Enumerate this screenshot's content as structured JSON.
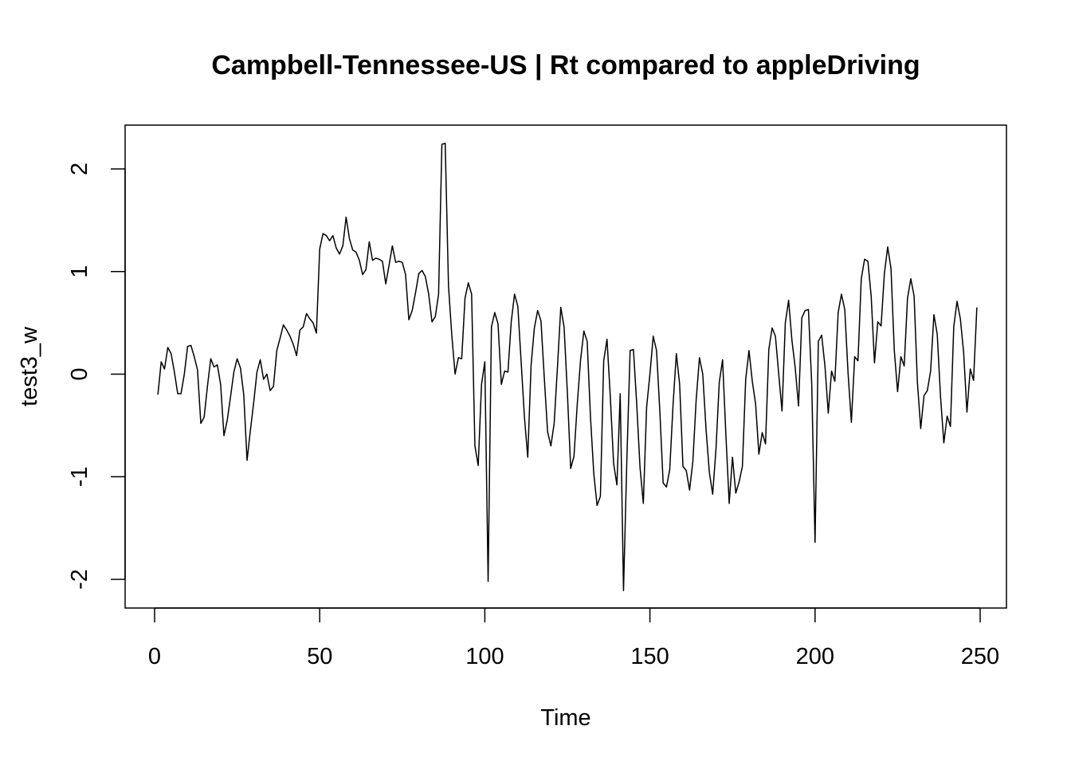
{
  "chart_data": {
    "type": "line",
    "title": "Campbell-Tennessee-US | Rt compared to appleDriving",
    "xlabel": "Time",
    "ylabel": "test3_w",
    "xlim": [
      0,
      250
    ],
    "ylim": [
      -2,
      2
    ],
    "x_ticks": [
      "0",
      "50",
      "100",
      "150",
      "200",
      "250"
    ],
    "y_ticks": [
      "-2",
      "-1",
      "0",
      "1",
      "2"
    ],
    "grid": false,
    "x_start": 1,
    "series": [
      {
        "color": "#000000",
        "values": [
          -0.2,
          0.12,
          0.05,
          0.26,
          0.2,
          0.02,
          -0.19,
          -0.19,
          0.0,
          0.27,
          0.28,
          0.17,
          0.04,
          -0.48,
          -0.42,
          -0.12,
          0.15,
          0.07,
          0.09,
          -0.1,
          -0.6,
          -0.45,
          -0.22,
          0.02,
          0.15,
          0.06,
          -0.2,
          -0.84,
          -0.55,
          -0.28,
          0.02,
          0.14,
          -0.05,
          0.0,
          -0.16,
          -0.12,
          0.23,
          0.35,
          0.48,
          0.43,
          0.37,
          0.29,
          0.18,
          0.43,
          0.46,
          0.59,
          0.54,
          0.5,
          0.4,
          1.22,
          1.37,
          1.35,
          1.3,
          1.35,
          1.23,
          1.17,
          1.25,
          1.53,
          1.32,
          1.21,
          1.19,
          1.11,
          0.97,
          1.02,
          1.29,
          1.11,
          1.13,
          1.12,
          1.1,
          0.88,
          1.06,
          1.25,
          1.09,
          1.1,
          1.09,
          0.97,
          0.53,
          0.62,
          0.79,
          0.98,
          1.01,
          0.95,
          0.78,
          0.51,
          0.56,
          0.78,
          2.24,
          2.25,
          0.86,
          0.38,
          0.0,
          0.16,
          0.15,
          0.74,
          0.89,
          0.78,
          -0.7,
          -0.89,
          -0.1,
          0.12,
          -2.02,
          0.46,
          0.6,
          0.49,
          -0.1,
          0.03,
          0.02,
          0.51,
          0.78,
          0.66,
          0.12,
          -0.42,
          -0.81,
          0.08,
          0.45,
          0.62,
          0.52,
          -0.03,
          -0.56,
          -0.7,
          -0.48,
          0.07,
          0.65,
          0.46,
          -0.18,
          -0.92,
          -0.8,
          -0.29,
          0.14,
          0.42,
          0.32,
          -0.42,
          -0.97,
          -1.28,
          -1.19,
          0.13,
          0.34,
          -0.22,
          -0.87,
          -1.08,
          -0.19,
          -2.11,
          -0.85,
          0.23,
          0.24,
          -0.29,
          -0.91,
          -1.26,
          -0.32,
          0.0,
          0.37,
          0.23,
          -0.36,
          -1.06,
          -1.1,
          -0.93,
          -0.3,
          0.2,
          -0.1,
          -0.9,
          -0.94,
          -1.13,
          -0.85,
          -0.25,
          0.16,
          0.0,
          -0.54,
          -0.96,
          -1.17,
          -0.73,
          -0.08,
          0.14,
          -0.59,
          -1.26,
          -0.81,
          -1.16,
          -1.05,
          -0.9,
          -0.05,
          0.23,
          -0.07,
          -0.29,
          -0.78,
          -0.57,
          -0.68,
          0.24,
          0.45,
          0.37,
          0.0,
          -0.36,
          0.5,
          0.72,
          0.33,
          0.06,
          -0.31,
          0.55,
          0.62,
          0.63,
          -0.1,
          -1.64,
          0.32,
          0.38,
          0.08,
          -0.38,
          0.03,
          -0.07,
          0.6,
          0.78,
          0.63,
          0.01,
          -0.47,
          0.17,
          0.13,
          0.93,
          1.12,
          1.1,
          0.76,
          0.11,
          0.51,
          0.47,
          0.98,
          1.24,
          1.03,
          0.23,
          -0.17,
          0.17,
          0.08,
          0.74,
          0.93,
          0.76,
          -0.08,
          -0.53,
          -0.21,
          -0.16,
          0.03,
          0.58,
          0.39,
          -0.22,
          -0.67,
          -0.41,
          -0.51,
          0.46,
          0.71,
          0.54,
          0.21,
          -0.37,
          0.05,
          -0.06,
          0.65
        ]
      }
    ]
  }
}
